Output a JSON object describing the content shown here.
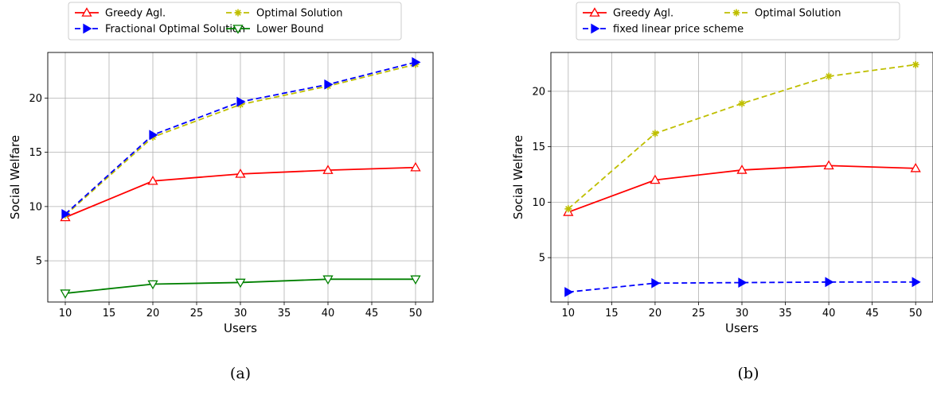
{
  "chart_data": [
    {
      "type": "line",
      "caption": "(a)",
      "xlabel": "Users",
      "ylabel": "Social Welfare",
      "x": [
        10,
        20,
        30,
        40,
        50
      ],
      "xlim": [
        8,
        52
      ],
      "ylim": [
        1.2,
        24.2
      ],
      "xticks": [
        "10",
        "15",
        "20",
        "25",
        "30",
        "35",
        "40",
        "45",
        "50"
      ],
      "yticks": [
        "5",
        "10",
        "15",
        "20"
      ],
      "grid": true,
      "legend_position": "top",
      "legend_columns": 2,
      "series": [
        {
          "name": "Greedy Agl.",
          "values": [
            9.0,
            12.35,
            13.0,
            13.35,
            13.6
          ],
          "color": "#ff0000",
          "dash": "solid",
          "marker": "triangle-up-open"
        },
        {
          "name": "Optimal Solution",
          "values": [
            9.2,
            16.4,
            19.4,
            21.1,
            23.1
          ],
          "color": "#bfbf00",
          "dash": "dashed",
          "marker": "star"
        },
        {
          "name": "Fractional Optimal Solution",
          "values": [
            9.3,
            16.6,
            19.65,
            21.25,
            23.3
          ],
          "color": "#0000ff",
          "dash": "dashed",
          "marker": "triangle-right"
        },
        {
          "name": "Lower Bound",
          "values": [
            2.0,
            2.85,
            3.0,
            3.3,
            3.3
          ],
          "color": "#008000",
          "dash": "solid",
          "marker": "triangle-down-open"
        }
      ]
    },
    {
      "type": "line",
      "caption": "(b)",
      "xlabel": "Users",
      "ylabel": "Social Welfare",
      "x": [
        10,
        20,
        30,
        40,
        50
      ],
      "xlim": [
        8,
        52
      ],
      "ylim": [
        1.0,
        23.5
      ],
      "xticks": [
        "10",
        "15",
        "20",
        "25",
        "30",
        "35",
        "40",
        "45",
        "50"
      ],
      "yticks": [
        "5",
        "10",
        "15",
        "20"
      ],
      "grid": true,
      "legend_position": "top",
      "legend_columns": 2,
      "series": [
        {
          "name": "Greedy Agl.",
          "values": [
            9.1,
            12.0,
            12.9,
            13.3,
            13.05
          ],
          "color": "#ff0000",
          "dash": "solid",
          "marker": "triangle-up-open"
        },
        {
          "name": "Optimal Solution",
          "values": [
            9.4,
            16.2,
            18.9,
            21.35,
            22.4
          ],
          "color": "#bfbf00",
          "dash": "dashed",
          "marker": "star"
        },
        {
          "name": "fixed linear price scheme",
          "values": [
            1.9,
            2.7,
            2.75,
            2.8,
            2.8
          ],
          "color": "#0000ff",
          "dash": "dashed",
          "marker": "triangle-right"
        }
      ]
    }
  ]
}
